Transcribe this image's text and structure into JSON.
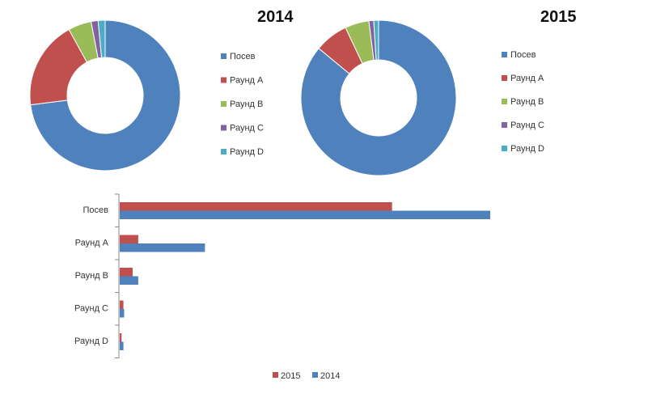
{
  "colors": {
    "Посев": "#4F81BD",
    "Раунд A": "#C0504D",
    "Раунд B": "#9BBB59",
    "Раунд C": "#8064A2",
    "Раунд D": "#4BACC6"
  },
  "chart_data": [
    {
      "type": "pie",
      "style": "donut",
      "title": "2014",
      "categories": [
        "Посев",
        "Раунд A",
        "Раунд B",
        "Раунд C",
        "Раунд D"
      ],
      "values": [
        73,
        19,
        5,
        1.5,
        1.5
      ],
      "legend": "right"
    },
    {
      "type": "pie",
      "style": "donut",
      "title": "2015",
      "categories": [
        "Посев",
        "Раунд A",
        "Раунд B",
        "Раунд C",
        "Раунд D"
      ],
      "values": [
        86,
        7,
        5,
        1,
        1
      ],
      "legend": "right"
    },
    {
      "type": "bar",
      "orientation": "horizontal",
      "categories": [
        "Посев",
        "Раунд A",
        "Раунд B",
        "Раунд C",
        "Раунд D"
      ],
      "series": [
        {
          "name": "2015",
          "color": "#C0504D",
          "values": [
            73.5,
            5,
            3.5,
            1,
            0.5
          ]
        },
        {
          "name": "2014",
          "color": "#4F81BD",
          "values": [
            100,
            23,
            5,
            1.2,
            1
          ]
        }
      ],
      "xlim": [
        0,
        100
      ],
      "grid": false,
      "legend": "bottom"
    }
  ]
}
